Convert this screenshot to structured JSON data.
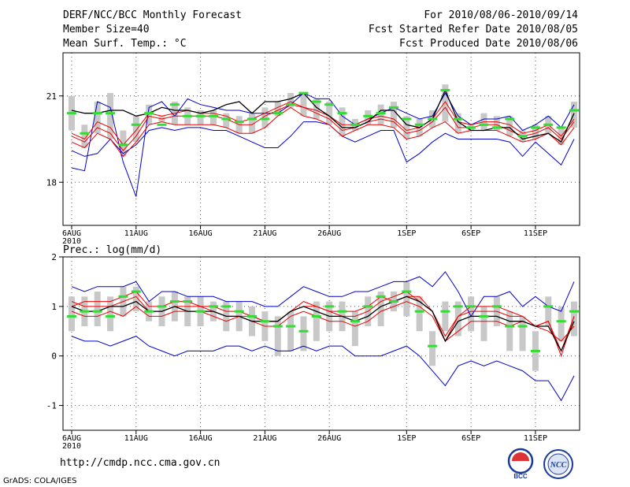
{
  "header": {
    "left": [
      "DERF/NCC/BCC Monthly Forecast",
      "Member Size=40",
      "Mean Surf. Temp.: °C"
    ],
    "right": [
      "For 2010/08/06-2010/09/14",
      "Fcst Started Refer Date 2010/08/05",
      "Fcst Produced Date 2010/08/06"
    ]
  },
  "precip_label": "Prec.: log(mm/d)",
  "footer": {
    "url": "http://cmdp.ncc.cma.gov.cn",
    "grads": "GrADS: COLA/IGES"
  },
  "logos": {
    "bcc": "BCC",
    "ncc": "NCC"
  },
  "colors": {
    "envelope": "#0000cc",
    "spread": "#ee0000",
    "mean": "#000000",
    "box": "#c8c8c8",
    "median": "#33dd33",
    "grid": "#000000"
  },
  "chart_data": [
    {
      "type": "line",
      "title": "Mean Surf. Temp.: °C",
      "xlabel": "",
      "ylabel": "",
      "ylim": [
        16.5,
        22.5
      ],
      "yticks": [
        18,
        21
      ],
      "xtick_labels": [
        "6AUG\n2010",
        "11AUG",
        "16AUG",
        "21AUG",
        "26AUG",
        "1SEP",
        "6SEP",
        "11SEP"
      ],
      "xtick_days": [
        1,
        6,
        11,
        16,
        21,
        27,
        32,
        37
      ],
      "days": 40,
      "series": [
        {
          "name": "max",
          "values": [
            18.5,
            18.4,
            20.8,
            20.6,
            18.7,
            17.5,
            20.6,
            20.8,
            20.3,
            20.9,
            20.7,
            20.6,
            20.5,
            20.5,
            20.4,
            20.4,
            20.4,
            20.7,
            21.1,
            20.9,
            20.9,
            20.3,
            20.0,
            20.2,
            20.4,
            20.6,
            20.4,
            20.2,
            20.3,
            21.1,
            20.3,
            20.0,
            20.2,
            20.2,
            20.3,
            19.8,
            20.0,
            20.3,
            19.9,
            20.7
          ]
        },
        {
          "name": "min",
          "values": [
            19.1,
            18.9,
            19.0,
            19.5,
            19.0,
            19.3,
            19.8,
            19.9,
            19.8,
            19.9,
            19.9,
            19.8,
            19.8,
            19.6,
            19.4,
            19.2,
            19.2,
            19.6,
            20.1,
            20.1,
            20.0,
            19.6,
            19.4,
            19.6,
            19.8,
            19.8,
            18.7,
            19.0,
            19.4,
            19.7,
            19.5,
            19.5,
            19.5,
            19.5,
            19.4,
            18.9,
            19.4,
            19.0,
            18.6,
            19.5
          ]
        },
        {
          "name": "p25",
          "values": [
            19.4,
            19.2,
            19.7,
            19.5,
            18.9,
            19.4,
            20.0,
            20.1,
            20.0,
            20.0,
            20.0,
            20.0,
            19.9,
            19.7,
            19.7,
            19.9,
            20.3,
            20.6,
            20.3,
            20.2,
            20.0,
            19.6,
            19.8,
            20.0,
            20.0,
            19.9,
            19.5,
            19.6,
            19.9,
            20.1,
            19.7,
            19.8,
            19.8,
            19.8,
            19.6,
            19.4,
            19.5,
            19.7,
            19.3,
            19.9
          ]
        },
        {
          "name": "median",
          "values": [
            19.6,
            19.4,
            19.9,
            19.7,
            19.1,
            19.6,
            20.3,
            20.2,
            20.3,
            20.3,
            20.3,
            20.3,
            20.2,
            20.0,
            20.0,
            20.3,
            20.5,
            20.7,
            20.6,
            20.4,
            20.2,
            19.8,
            19.9,
            20.1,
            20.2,
            20.1,
            19.7,
            19.8,
            20.1,
            20.6,
            19.9,
            19.9,
            20.0,
            20.0,
            19.8,
            19.6,
            19.7,
            19.9,
            19.5,
            20.1
          ]
        },
        {
          "name": "p75",
          "values": [
            19.7,
            19.5,
            20.1,
            19.9,
            19.3,
            19.8,
            20.4,
            20.3,
            20.4,
            20.5,
            20.4,
            20.4,
            20.3,
            20.1,
            20.2,
            20.4,
            20.6,
            20.8,
            20.6,
            20.5,
            20.3,
            20.0,
            20.0,
            20.2,
            20.3,
            20.2,
            19.8,
            19.9,
            20.2,
            20.8,
            20.1,
            20.0,
            20.1,
            20.1,
            20.0,
            19.7,
            19.8,
            20.0,
            19.6,
            20.2
          ]
        },
        {
          "name": "mean",
          "values": [
            20.5,
            20.4,
            20.4,
            20.5,
            20.5,
            20.3,
            20.4,
            20.6,
            20.5,
            20.5,
            20.4,
            20.5,
            20.7,
            20.8,
            20.4,
            20.8,
            20.8,
            20.9,
            21.1,
            20.6,
            20.3,
            19.9,
            19.9,
            20.1,
            20.5,
            20.5,
            20.0,
            19.9,
            20.2,
            21.2,
            20.1,
            19.8,
            19.8,
            19.9,
            19.9,
            19.5,
            19.6,
            19.7,
            19.4,
            20.4
          ]
        }
      ],
      "medians": [
        20.4,
        19.7,
        20.4,
        20.4,
        19.3,
        20.0,
        20.4,
        20.0,
        20.7,
        20.3,
        20.3,
        20.3,
        20.2,
        20.1,
        20.2,
        20.2,
        20.4,
        20.7,
        21.1,
        20.8,
        20.7,
        20.4,
        20.0,
        20.3,
        20.4,
        20.6,
        20.2,
        20.0,
        20.2,
        21.2,
        20.2,
        19.9,
        20.0,
        19.9,
        20.2,
        19.6,
        19.9,
        20.0,
        19.9,
        20.5
      ],
      "box_low": [
        19.8,
        19.2,
        19.7,
        19.5,
        18.9,
        19.4,
        20.0,
        20.1,
        20.0,
        20.0,
        20.0,
        20.0,
        19.9,
        19.7,
        19.7,
        19.9,
        20.3,
        20.6,
        20.3,
        20.2,
        20.0,
        19.6,
        19.8,
        20.0,
        20.0,
        19.9,
        19.5,
        19.6,
        19.9,
        20.1,
        19.7,
        19.8,
        19.8,
        19.8,
        19.6,
        19.4,
        19.5,
        19.7,
        19.3,
        19.9
      ],
      "box_high": [
        21.0,
        20.0,
        20.8,
        21.1,
        19.8,
        20.3,
        20.7,
        20.3,
        20.8,
        20.6,
        20.5,
        20.5,
        20.4,
        20.3,
        20.4,
        20.6,
        20.8,
        21.1,
        21.1,
        20.9,
        20.8,
        20.6,
        20.2,
        20.5,
        20.7,
        20.8,
        20.3,
        20.2,
        20.5,
        21.4,
        20.4,
        20.0,
        20.4,
        20.3,
        20.3,
        19.8,
        20.0,
        20.3,
        19.9,
        20.8
      ]
    },
    {
      "type": "line",
      "title": "Prec.: log(mm/d)",
      "xlabel": "",
      "ylabel": "",
      "ylim": [
        -1.5,
        2
      ],
      "yticks": [
        -1,
        0,
        1,
        2
      ],
      "xtick_labels": [
        "6AUG\n2010",
        "11AUG",
        "16AUG",
        "21AUG",
        "26AUG",
        "1SEP",
        "6SEP",
        "11SEP"
      ],
      "xtick_days": [
        1,
        6,
        11,
        16,
        21,
        27,
        32,
        37
      ],
      "days": 40,
      "series": [
        {
          "name": "max",
          "values": [
            1.4,
            1.3,
            1.4,
            1.4,
            1.4,
            1.5,
            1.1,
            1.3,
            1.3,
            1.2,
            1.2,
            1.2,
            1.1,
            1.1,
            1.1,
            1.0,
            1.0,
            1.2,
            1.4,
            1.3,
            1.2,
            1.2,
            1.3,
            1.3,
            1.4,
            1.5,
            1.5,
            1.6,
            1.4,
            1.7,
            1.3,
            0.8,
            1.2,
            1.2,
            1.3,
            1.0,
            1.2,
            1.0,
            0.9,
            1.5
          ]
        },
        {
          "name": "min",
          "values": [
            0.4,
            0.3,
            0.3,
            0.2,
            0.3,
            0.4,
            0.2,
            0.1,
            0.0,
            0.1,
            0.1,
            0.1,
            0.2,
            0.2,
            0.1,
            0.2,
            0.1,
            0.1,
            0.2,
            0.1,
            0.2,
            0.2,
            0.0,
            0.0,
            0.0,
            0.1,
            0.2,
            0.0,
            -0.3,
            -0.6,
            -0.2,
            -0.1,
            -0.2,
            -0.1,
            -0.2,
            -0.3,
            -0.5,
            -0.5,
            -0.9,
            -0.4
          ]
        },
        {
          "name": "p25",
          "values": [
            0.9,
            0.8,
            0.8,
            0.9,
            0.8,
            1.0,
            0.8,
            0.8,
            0.9,
            0.9,
            0.9,
            0.8,
            0.7,
            0.8,
            0.7,
            0.6,
            0.6,
            0.8,
            0.9,
            0.8,
            0.7,
            0.7,
            0.6,
            0.7,
            0.9,
            1.0,
            1.1,
            1.0,
            0.8,
            0.3,
            0.5,
            0.7,
            0.7,
            0.7,
            0.6,
            0.7,
            0.6,
            0.5,
            0.3,
            0.6
          ]
        },
        {
          "name": "median",
          "values": [
            1.0,
            1.1,
            1.1,
            1.1,
            1.2,
            1.3,
            1.0,
            1.0,
            1.1,
            1.1,
            1.0,
            1.0,
            0.9,
            0.9,
            0.8,
            0.7,
            0.7,
            0.9,
            1.1,
            1.0,
            0.9,
            0.9,
            0.9,
            1.0,
            1.2,
            1.1,
            1.2,
            1.2,
            0.9,
            0.3,
            0.8,
            1.0,
            1.0,
            1.0,
            0.9,
            0.8,
            0.6,
            0.7,
            0.1,
            0.8
          ]
        },
        {
          "name": "p75",
          "values": [
            1.1,
            1.0,
            1.0,
            1.0,
            1.1,
            1.2,
            0.9,
            0.9,
            1.0,
            1.0,
            1.0,
            0.9,
            0.8,
            0.8,
            0.8,
            0.7,
            0.7,
            0.9,
            1.0,
            1.0,
            0.9,
            0.8,
            0.8,
            0.9,
            1.1,
            1.2,
            1.3,
            1.1,
            0.9,
            0.4,
            0.8,
            0.9,
            0.9,
            0.9,
            0.8,
            0.8,
            0.6,
            0.7,
            0.0,
            0.8
          ]
        },
        {
          "name": "mean",
          "values": [
            1.0,
            0.9,
            0.9,
            1.0,
            1.0,
            1.1,
            0.9,
            0.9,
            1.0,
            0.9,
            0.9,
            0.9,
            0.8,
            0.8,
            0.7,
            0.7,
            0.7,
            0.9,
            1.0,
            0.9,
            0.8,
            0.8,
            0.7,
            0.8,
            1.0,
            1.1,
            1.2,
            1.1,
            0.9,
            0.3,
            0.7,
            0.8,
            0.8,
            0.8,
            0.7,
            0.7,
            0.6,
            0.6,
            0.1,
            0.7
          ]
        }
      ],
      "medians": [
        0.8,
        0.9,
        0.9,
        0.8,
        1.2,
        1.3,
        0.9,
        1.0,
        1.1,
        1.1,
        0.9,
        1.0,
        1.0,
        0.9,
        0.8,
        0.7,
        0.6,
        0.6,
        0.5,
        0.8,
        1.0,
        0.9,
        0.7,
        1.0,
        1.2,
        1.1,
        1.3,
        0.9,
        0.2,
        0.9,
        1.0,
        1.0,
        0.8,
        1.0,
        0.6,
        0.6,
        0.1,
        1.0,
        0.7,
        0.9
      ],
      "box_low": [
        0.5,
        0.6,
        0.6,
        0.5,
        0.8,
        0.9,
        0.7,
        0.6,
        0.7,
        0.6,
        0.6,
        0.7,
        0.5,
        0.5,
        0.4,
        0.3,
        0.0,
        0.1,
        0.1,
        0.3,
        0.5,
        0.5,
        0.2,
        0.6,
        0.6,
        0.9,
        0.8,
        0.5,
        -0.2,
        0.5,
        0.4,
        0.5,
        0.3,
        0.6,
        0.1,
        0.1,
        -0.3,
        0.6,
        0.3,
        0.4
      ],
      "box_high": [
        1.2,
        1.2,
        1.3,
        1.2,
        1.4,
        1.4,
        1.1,
        1.2,
        1.3,
        1.2,
        1.2,
        1.1,
        1.1,
        1.1,
        1.0,
        0.9,
        0.8,
        0.9,
        0.8,
        1.1,
        1.1,
        1.1,
        0.9,
        1.2,
        1.3,
        1.3,
        1.5,
        1.2,
        0.5,
        1.1,
        1.1,
        1.2,
        1.0,
        1.2,
        0.9,
        0.8,
        0.5,
        1.2,
        1.0,
        1.1
      ]
    }
  ]
}
